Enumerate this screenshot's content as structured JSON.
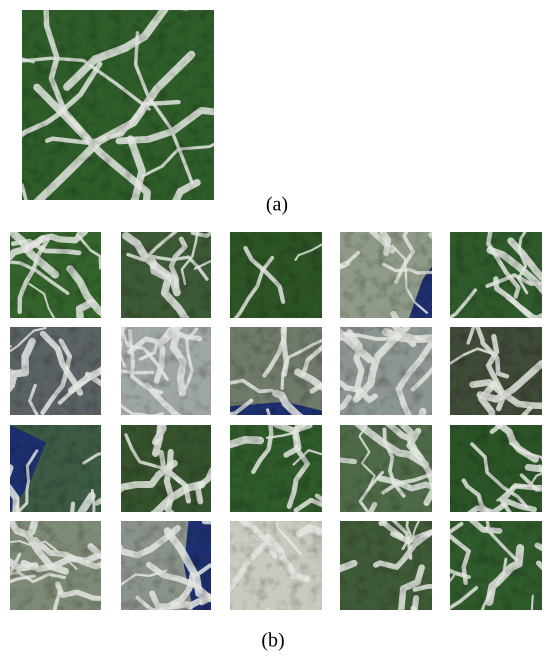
{
  "figure": {
    "caption_a": "(a)",
    "caption_b": "(b)"
  }
}
